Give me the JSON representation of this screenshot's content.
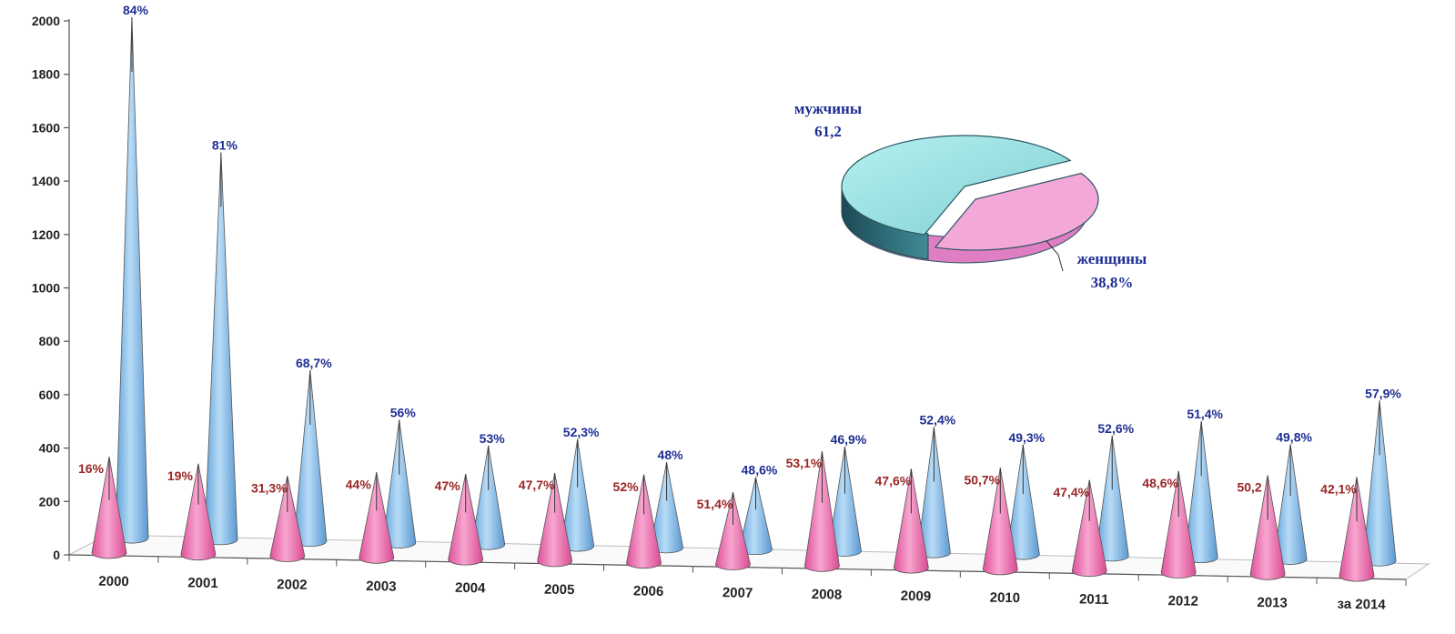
{
  "chart_data": [
    {
      "type": "bar",
      "shape": "cone-3d",
      "title": "",
      "xlabel": "",
      "ylabel": "",
      "ylim": [
        0,
        2000
      ],
      "yticks": [
        "0",
        "200",
        "400",
        "600",
        "800",
        "1000",
        "1200",
        "1400",
        "1600",
        "1800",
        "2000"
      ],
      "grid": false,
      "categories": [
        "2000",
        "2001",
        "2002",
        "2003",
        "2004",
        "2005",
        "2006",
        "2007",
        "2008",
        "2009",
        "2010",
        "2011",
        "2012",
        "2013",
        "за 2014"
      ],
      "series": [
        {
          "color": "#f08cc0",
          "values": [
            360,
            340,
            300,
            320,
            320,
            330,
            330,
            270,
            430,
            370,
            380,
            340,
            380,
            370,
            370
          ],
          "labels": [
            "16%",
            "19%",
            "31,3%",
            "44%",
            "47%",
            "47,7%",
            "52%",
            "51,4%",
            "53,1%",
            "47,6%",
            "50,7%",
            "47,4%",
            "48,6%",
            "50,2",
            "42,1%"
          ]
        },
        {
          "color": "#8ec4ea",
          "values": [
            1950,
            1450,
            640,
            460,
            370,
            400,
            320,
            270,
            390,
            470,
            410,
            450,
            510,
            430,
            600
          ],
          "labels": [
            "84%",
            "81%",
            "68,7%",
            "56%",
            "53%",
            "52,3%",
            "48%",
            "48,6%",
            "46,9%",
            "52,4%",
            "49,3%",
            "52,6%",
            "51,4%",
            "49,8%",
            "57,9%"
          ]
        }
      ]
    },
    {
      "type": "pie",
      "title": "",
      "slices": [
        {
          "label": "мужчины",
          "value": 61.2,
          "value_label": "61,2",
          "color": "#9ee4e4"
        },
        {
          "label": "женщины",
          "value": 38.8,
          "value_label": "38,8%",
          "color": "#f3a8d8"
        }
      ]
    }
  ]
}
